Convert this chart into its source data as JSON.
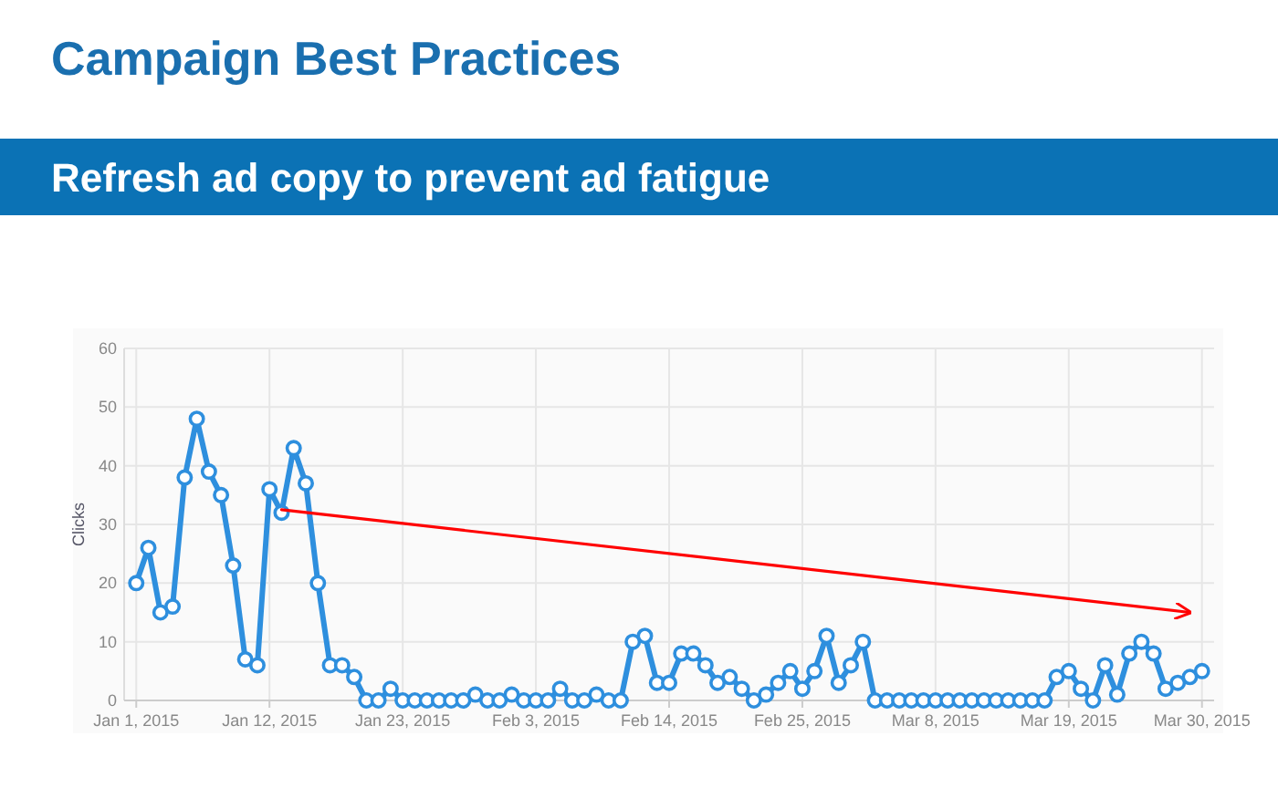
{
  "chart_data": {
    "type": "line",
    "title": "Campaign Best Practices",
    "subtitle": "Refresh ad copy to prevent ad fatigue",
    "ylabel": "Clicks",
    "xlim": [
      "2014-12-31",
      "2015-03-31"
    ],
    "xticks": [
      {
        "value": "2015-01-01",
        "label": "Jan 1, 2015"
      },
      {
        "value": "2015-01-12",
        "label": "Jan 12, 2015"
      },
      {
        "value": "2015-01-23",
        "label": "Jan 23, 2015"
      },
      {
        "value": "2015-02-03",
        "label": "Feb 3, 2015"
      },
      {
        "value": "2015-02-14",
        "label": "Feb 14, 2015"
      },
      {
        "value": "2015-02-25",
        "label": "Feb 25, 2015"
      },
      {
        "value": "2015-03-08",
        "label": "Mar 8, 2015"
      },
      {
        "value": "2015-03-19",
        "label": "Mar 19, 2015"
      },
      {
        "value": "2015-03-30",
        "label": "Mar 30, 2015"
      }
    ],
    "ylim": [
      0,
      60
    ],
    "yticks": [
      0,
      10,
      20,
      30,
      40,
      50,
      60
    ],
    "grid": true,
    "marker": "circle",
    "line_style": "solid",
    "x": [
      "2015-01-01",
      "2015-01-02",
      "2015-01-03",
      "2015-01-04",
      "2015-01-05",
      "2015-01-06",
      "2015-01-07",
      "2015-01-08",
      "2015-01-09",
      "2015-01-10",
      "2015-01-11",
      "2015-01-12",
      "2015-01-13",
      "2015-01-14",
      "2015-01-15",
      "2015-01-16",
      "2015-01-17",
      "2015-01-18",
      "2015-01-19",
      "2015-01-20",
      "2015-01-21",
      "2015-01-22",
      "2015-01-23",
      "2015-01-24",
      "2015-01-25",
      "2015-01-26",
      "2015-01-27",
      "2015-01-28",
      "2015-01-29",
      "2015-01-30",
      "2015-01-31",
      "2015-02-01",
      "2015-02-02",
      "2015-02-03",
      "2015-02-04",
      "2015-02-05",
      "2015-02-06",
      "2015-02-07",
      "2015-02-08",
      "2015-02-09",
      "2015-02-10",
      "2015-02-11",
      "2015-02-12",
      "2015-02-13",
      "2015-02-14",
      "2015-02-15",
      "2015-02-16",
      "2015-02-17",
      "2015-02-18",
      "2015-02-19",
      "2015-02-20",
      "2015-02-21",
      "2015-02-22",
      "2015-02-23",
      "2015-02-24",
      "2015-02-25",
      "2015-02-26",
      "2015-02-27",
      "2015-02-28",
      "2015-03-01",
      "2015-03-02",
      "2015-03-03",
      "2015-03-04",
      "2015-03-05",
      "2015-03-06",
      "2015-03-07",
      "2015-03-08",
      "2015-03-09",
      "2015-03-10",
      "2015-03-11",
      "2015-03-12",
      "2015-03-13",
      "2015-03-14",
      "2015-03-15",
      "2015-03-16",
      "2015-03-17",
      "2015-03-18",
      "2015-03-19",
      "2015-03-20",
      "2015-03-21",
      "2015-03-22",
      "2015-03-23",
      "2015-03-24",
      "2015-03-25",
      "2015-03-26",
      "2015-03-27",
      "2015-03-28",
      "2015-03-29",
      "2015-03-30"
    ],
    "series": [
      {
        "color": "#2e8fde",
        "values": [
          20,
          26,
          15,
          16,
          38,
          48,
          39,
          35,
          23,
          7,
          6,
          36,
          32,
          43,
          37,
          20,
          6,
          6,
          4,
          0,
          0,
          2,
          0,
          0,
          0,
          0,
          0,
          0,
          1,
          0,
          0,
          1,
          0,
          0,
          0,
          2,
          0,
          0,
          1,
          0,
          0,
          10,
          11,
          3,
          3,
          8,
          8,
          6,
          3,
          4,
          2,
          0,
          1,
          3,
          5,
          2,
          5,
          11,
          3,
          6,
          10,
          0,
          0,
          0,
          0,
          0,
          0,
          0,
          0,
          0,
          0,
          0,
          0,
          0,
          0,
          0,
          4,
          5,
          2,
          0,
          6,
          1,
          8,
          10,
          8,
          2,
          3,
          4,
          5
        ]
      },
      {
        "type": "line",
        "marker": "none",
        "color": "#ff0000",
        "x": [
          "2015-01-13",
          "2015-03-29"
        ],
        "values": [
          32.5,
          15
        ]
      }
    ]
  }
}
